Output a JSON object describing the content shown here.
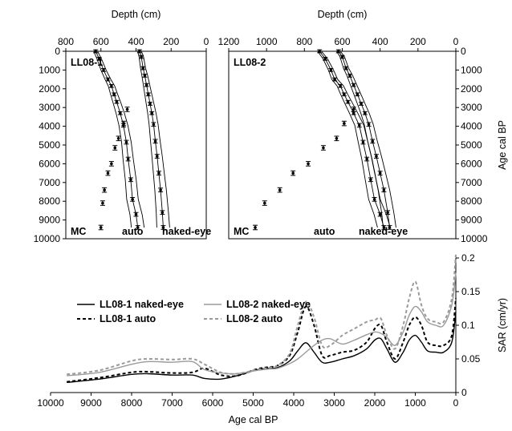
{
  "chart_data": [
    {
      "type": "scatter",
      "panel_label": "LL08-1",
      "xlabel": "Depth (cm)",
      "ylabel": "Age cal BP",
      "xlim": [
        800,
        0
      ],
      "ylim": [
        10000,
        0
      ],
      "x_ticks": [
        800,
        600,
        400,
        200,
        0
      ],
      "y_ticks": [
        0,
        1000,
        2000,
        3000,
        4000,
        5000,
        6000,
        7000,
        8000,
        9000,
        10000
      ],
      "annotations": [
        "MC",
        "auto",
        "naked-eye"
      ],
      "series": [
        {
          "name": "MC",
          "depth": [
            600,
            590,
            580,
            560,
            540,
            520,
            500,
            470,
            450
          ],
          "age": [
            9400,
            8100,
            7400,
            6500,
            6000,
            5150,
            4650,
            3850,
            3100
          ],
          "error": [
            120,
            120,
            120,
            120,
            120,
            120,
            120,
            120,
            120
          ]
        },
        {
          "name": "auto",
          "depth": [
            630,
            610,
            585,
            560,
            540,
            525,
            510,
            490,
            472,
            455,
            445,
            430,
            420,
            400,
            390
          ],
          "age": [
            0,
            400,
            1000,
            1500,
            1850,
            2300,
            2700,
            3300,
            3950,
            4850,
            5750,
            6850,
            7900,
            8700,
            9400
          ],
          "error": [
            80,
            80,
            80,
            80,
            80,
            80,
            80,
            80,
            100,
            100,
            100,
            100,
            100,
            100,
            100
          ]
        },
        {
          "name": "naked-eye",
          "depth": [
            380,
            370,
            360,
            350,
            340,
            330,
            320,
            310,
            300,
            290,
            280,
            270,
            260,
            250,
            245
          ],
          "age": [
            0,
            300,
            900,
            1300,
            1800,
            2300,
            2800,
            3300,
            3900,
            4800,
            5600,
            6500,
            7400,
            8600,
            9400
          ],
          "error": [
            80,
            80,
            80,
            80,
            80,
            80,
            80,
            80,
            100,
            100,
            100,
            100,
            100,
            100,
            100
          ]
        }
      ]
    },
    {
      "type": "scatter",
      "panel_label": "LL08-2",
      "xlabel": "Depth (cm)",
      "ylabel": "Age cal BP",
      "xlim": [
        1200,
        0
      ],
      "ylim": [
        10000,
        0
      ],
      "x_ticks": [
        1200,
        1000,
        800,
        600,
        400,
        200,
        0
      ],
      "y_ticks": [
        0,
        1000,
        2000,
        3000,
        4000,
        5000,
        6000,
        7000,
        8000,
        9000,
        10000
      ],
      "annotations": [
        "MC",
        "auto",
        "naked-eye"
      ],
      "series": [
        {
          "name": "MC",
          "depth": [
            1060,
            1010,
            930,
            860,
            780,
            700,
            630,
            590,
            540
          ],
          "age": [
            9400,
            8100,
            7400,
            6500,
            6000,
            5150,
            4650,
            3850,
            3100
          ],
          "error": [
            120,
            120,
            120,
            120,
            120,
            120,
            120,
            120,
            120
          ]
        },
        {
          "name": "auto",
          "depth": [
            720,
            690,
            660,
            640,
            610,
            590,
            570,
            540,
            510,
            490,
            470,
            450,
            430,
            400,
            380
          ],
          "age": [
            0,
            400,
            1000,
            1500,
            1850,
            2300,
            2700,
            3300,
            3950,
            4850,
            5750,
            6850,
            7900,
            8700,
            9400
          ],
          "error": [
            80,
            80,
            80,
            80,
            80,
            80,
            80,
            80,
            100,
            100,
            100,
            100,
            100,
            100,
            100
          ]
        },
        {
          "name": "naked-eye",
          "depth": [
            620,
            600,
            580,
            560,
            540,
            520,
            500,
            480,
            460,
            440,
            420,
            400,
            380,
            360,
            350
          ],
          "age": [
            0,
            300,
            900,
            1300,
            1800,
            2300,
            2800,
            3300,
            3900,
            4800,
            5600,
            6500,
            7400,
            8600,
            9400
          ],
          "error": [
            80,
            80,
            80,
            80,
            80,
            80,
            80,
            80,
            100,
            100,
            100,
            100,
            100,
            100,
            100
          ]
        }
      ]
    },
    {
      "type": "line",
      "xlabel": "Age cal BP",
      "ylabel": "SAR (cm/yr)",
      "xlim": [
        10000,
        0
      ],
      "ylim": [
        0,
        0.2
      ],
      "x_ticks": [
        10000,
        9000,
        8000,
        7000,
        6000,
        5000,
        4000,
        3000,
        2000,
        1000,
        0
      ],
      "y_ticks": [
        0,
        0.05,
        0.1,
        0.15,
        0.2
      ],
      "legend_placement": "top-left",
      "x": [
        9600,
        8800,
        8000,
        7600,
        7000,
        6500,
        6200,
        5800,
        5400,
        4900,
        4600,
        4400,
        4100,
        3900,
        3700,
        3500,
        3300,
        3100,
        2800,
        2500,
        2200,
        2000,
        1850,
        1700,
        1500,
        1300,
        1150,
        1000,
        850,
        700,
        500,
        300,
        100,
        0
      ],
      "series": [
        {
          "name": "LL08-1 naked-eye",
          "color": "#000000",
          "dash": "solid",
          "values": [
            0.015,
            0.02,
            0.027,
            0.028,
            0.026,
            0.026,
            0.021,
            0.02,
            0.025,
            0.034,
            0.036,
            0.037,
            0.047,
            0.062,
            0.074,
            0.06,
            0.045,
            0.045,
            0.05,
            0.055,
            0.065,
            0.078,
            0.08,
            0.065,
            0.045,
            0.06,
            0.078,
            0.085,
            0.075,
            0.062,
            0.06,
            0.06,
            0.075,
            0.12
          ]
        },
        {
          "name": "LL08-1 auto",
          "color": "#000000",
          "dash": "dashed",
          "values": [
            0.016,
            0.022,
            0.03,
            0.031,
            0.029,
            0.03,
            0.036,
            0.026,
            0.025,
            0.035,
            0.038,
            0.04,
            0.055,
            0.09,
            0.128,
            0.1,
            0.055,
            0.055,
            0.06,
            0.063,
            0.075,
            0.095,
            0.1,
            0.075,
            0.05,
            0.075,
            0.1,
            0.112,
            0.1,
            0.075,
            0.07,
            0.07,
            0.085,
            0.14
          ]
        },
        {
          "name": "LL08-2 naked-eye",
          "color": "#9a9a9a",
          "dash": "solid",
          "values": [
            0.025,
            0.03,
            0.042,
            0.046,
            0.045,
            0.046,
            0.034,
            0.029,
            0.028,
            0.033,
            0.035,
            0.036,
            0.043,
            0.05,
            0.06,
            0.07,
            0.078,
            0.08,
            0.072,
            0.078,
            0.086,
            0.09,
            0.088,
            0.082,
            0.07,
            0.09,
            0.115,
            0.128,
            0.12,
            0.105,
            0.1,
            0.1,
            0.13,
            0.178
          ]
        },
        {
          "name": "LL08-2 auto",
          "color": "#9a9a9a",
          "dash": "dashed",
          "values": [
            0.027,
            0.033,
            0.047,
            0.05,
            0.049,
            0.05,
            0.042,
            0.03,
            0.028,
            0.034,
            0.037,
            0.04,
            0.058,
            0.1,
            0.135,
            0.112,
            0.07,
            0.07,
            0.085,
            0.095,
            0.105,
            0.108,
            0.11,
            0.085,
            0.065,
            0.1,
            0.14,
            0.165,
            0.13,
            0.11,
            0.105,
            0.105,
            0.14,
            0.205
          ]
        }
      ]
    }
  ]
}
